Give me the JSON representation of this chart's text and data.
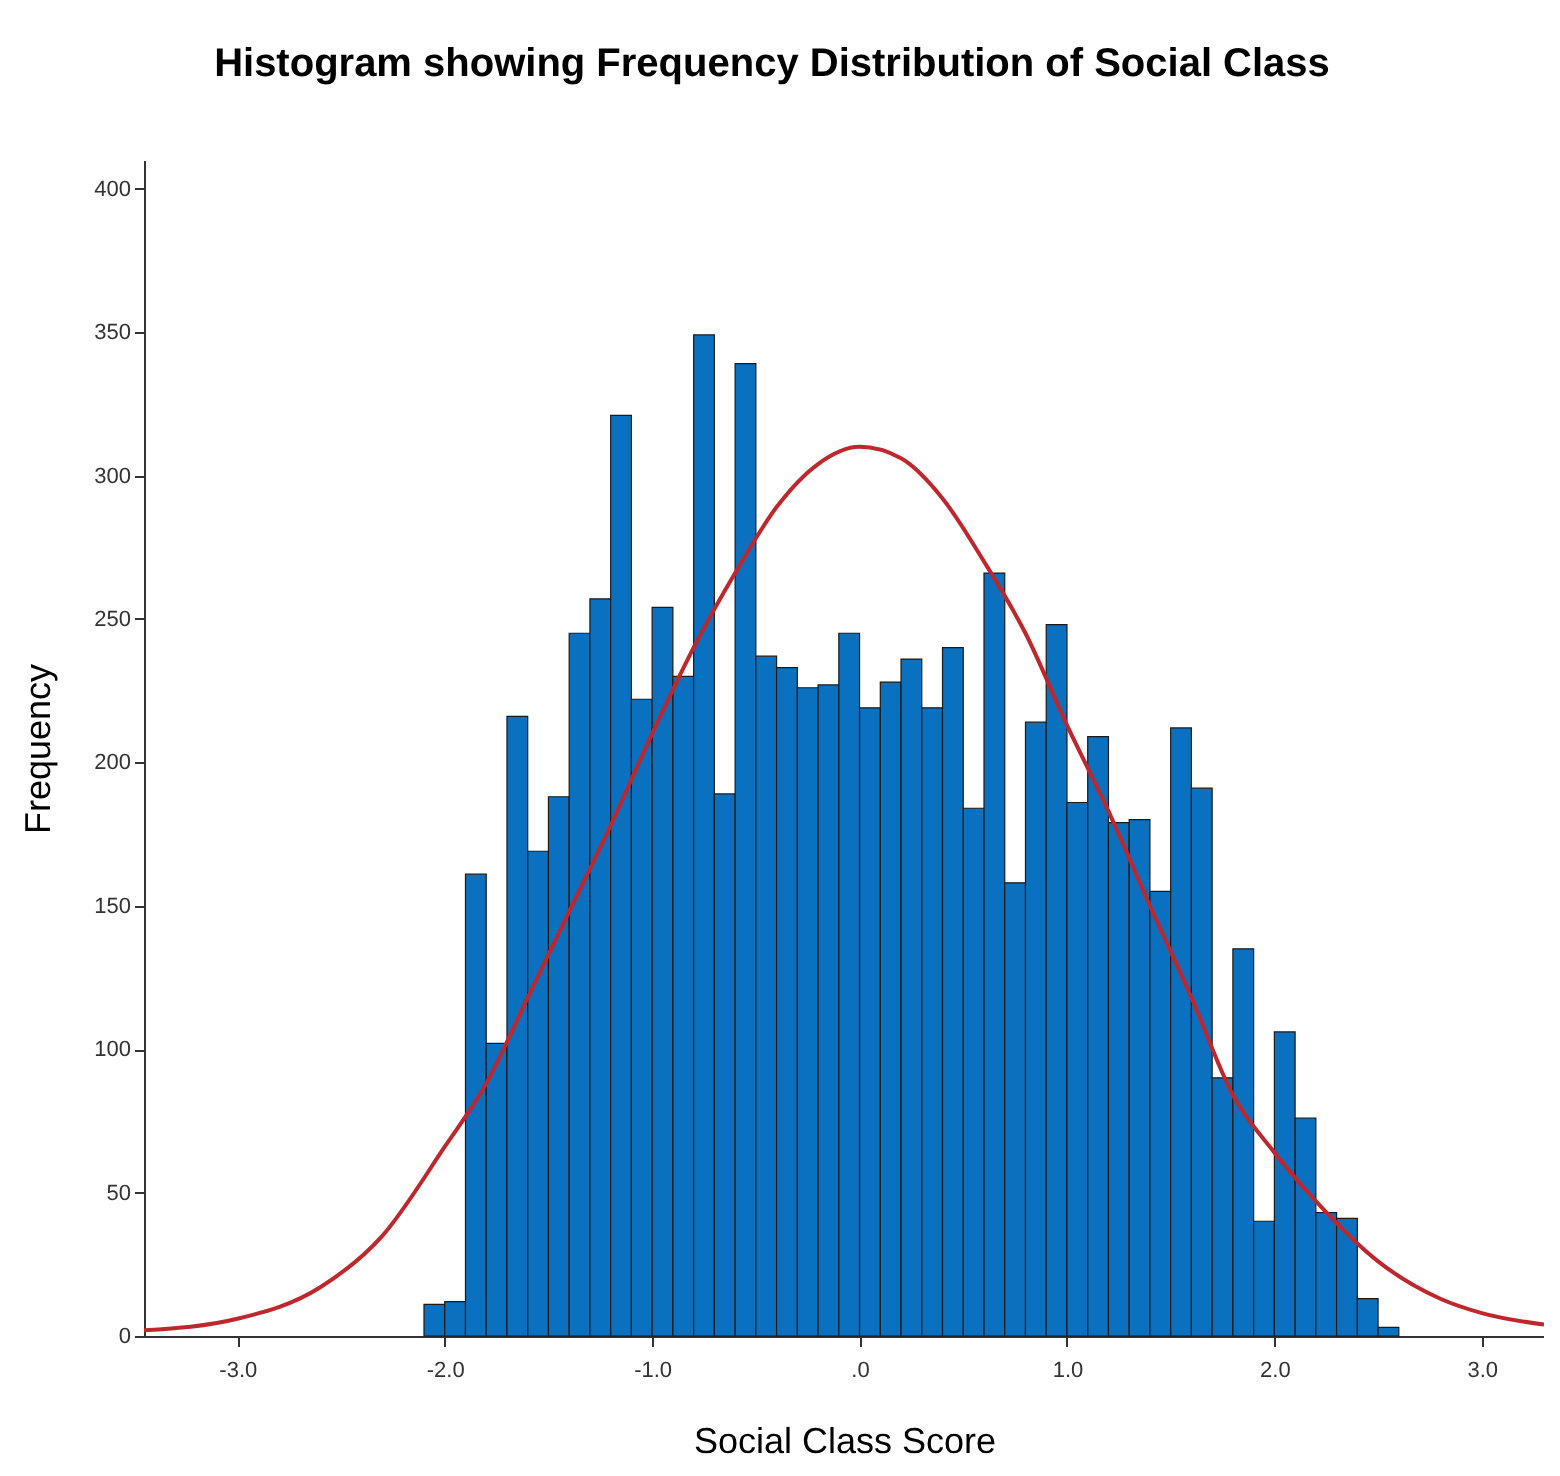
{
  "chart_data": {
    "type": "histogram",
    "title": "Histogram showing Frequency Distribution of Social Class",
    "xlabel": "Social Class Score",
    "ylabel": "Frequency",
    "bins": [
      -2.1,
      -2.0,
      -1.9,
      -1.8,
      -1.7,
      -1.6,
      -1.5,
      -1.4,
      -1.3,
      -1.2,
      -1.1,
      -1.0,
      -0.9,
      -0.8,
      -0.7,
      -0.6,
      -0.5,
      -0.4,
      -0.3,
      -0.2,
      -0.1,
      0.0,
      0.1,
      0.2,
      0.3,
      0.4,
      0.5,
      0.6,
      0.7,
      0.8,
      0.9,
      1.0,
      1.1,
      1.2,
      1.3,
      1.4,
      1.5,
      1.6,
      1.7,
      1.8,
      1.9,
      2.0,
      2.1,
      2.2,
      2.3,
      2.4,
      2.5,
      2.6
    ],
    "values": [
      11,
      12,
      161,
      102,
      216,
      169,
      188,
      245,
      257,
      321,
      222,
      254,
      230,
      349,
      189,
      339,
      237,
      233,
      226,
      227,
      245,
      219,
      228,
      236,
      219,
      240,
      184,
      266,
      158,
      214,
      248,
      186,
      209,
      179,
      180,
      155,
      212,
      191,
      90,
      135,
      40,
      106,
      76,
      43,
      41,
      13,
      3
    ],
    "color": "#0a70c0",
    "series": [
      {
        "type": "line",
        "color": "#c0272d",
        "x": [
          -3.45,
          -3.0,
          -2.6,
          -2.3,
          -2.0,
          -1.8,
          -1.6,
          -1.4,
          -1.2,
          -1.0,
          -0.8,
          -0.6,
          -0.4,
          -0.2,
          0.0,
          0.2,
          0.4,
          0.6,
          0.8,
          1.0,
          1.2,
          1.4,
          1.6,
          1.8,
          2.0,
          2.2,
          2.5,
          2.8,
          3.0,
          3.3
        ],
        "values": [
          2,
          6,
          17,
          35,
          66,
          88,
          118,
          148,
          178,
          210,
          240,
          266,
          289,
          304,
          310,
          306,
          292,
          270,
          245,
          213,
          183,
          150,
          118,
          84,
          64,
          47,
          26,
          13,
          8,
          4
        ]
      }
    ],
    "xlim": [
      -3.45,
      3.3
    ],
    "xticks": [
      {
        "value": -3,
        "label": "-3.0"
      },
      {
        "value": -2,
        "label": "-2.0"
      },
      {
        "value": -1,
        "label": "-1.0"
      },
      {
        "value": 0,
        "label": ".0"
      },
      {
        "value": 1,
        "label": "1.0"
      },
      {
        "value": 2,
        "label": "2.0"
      },
      {
        "value": 3,
        "label": "3.0"
      }
    ],
    "ylim": [
      0,
      410
    ],
    "yticks": [
      0,
      50,
      100,
      150,
      200,
      250,
      300,
      350,
      400
    ],
    "grid": false,
    "marker": "none"
  }
}
